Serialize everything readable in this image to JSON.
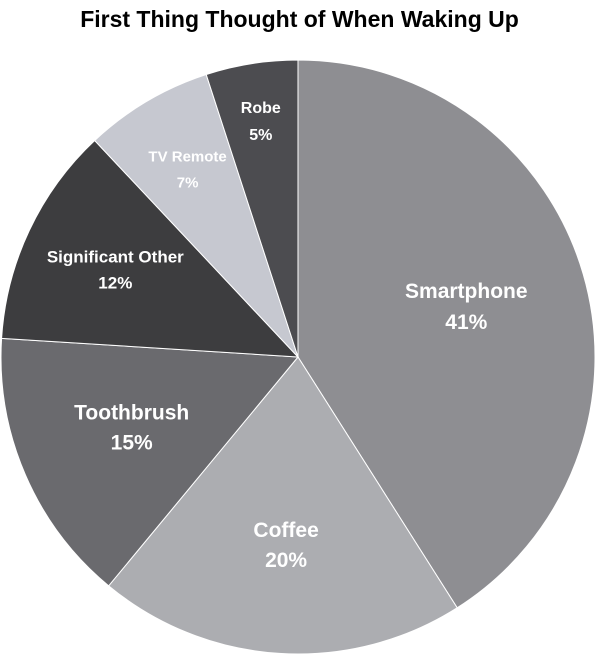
{
  "chart_data": {
    "type": "pie",
    "title": "First Thing Thought of When Waking Up",
    "slices": [
      {
        "label": "Smartphone",
        "value": 41,
        "value_label": "41%",
        "color": "#8e8e92",
        "text_color": "#ffffff"
      },
      {
        "label": "Coffee",
        "value": 20,
        "value_label": "20%",
        "color": "#acadb1",
        "text_color": "#ffffff"
      },
      {
        "label": "Toothbrush",
        "value": 15,
        "value_label": "15%",
        "color": "#6a6a6e",
        "text_color": "#ffffff"
      },
      {
        "label": "Significant Other",
        "value": 12,
        "value_label": "12%",
        "color": "#3d3d3f",
        "text_color": "#ffffff"
      },
      {
        "label": "TV Remote",
        "value": 7,
        "value_label": "7%",
        "color": "#c6c8d0",
        "text_color": "#ffffff"
      },
      {
        "label": "Robe",
        "value": 5,
        "value_label": "5%",
        "color": "#4c4c50",
        "text_color": "#ffffff"
      }
    ],
    "start_position": "12 o'clock",
    "direction": "clockwise",
    "legend": "none"
  }
}
